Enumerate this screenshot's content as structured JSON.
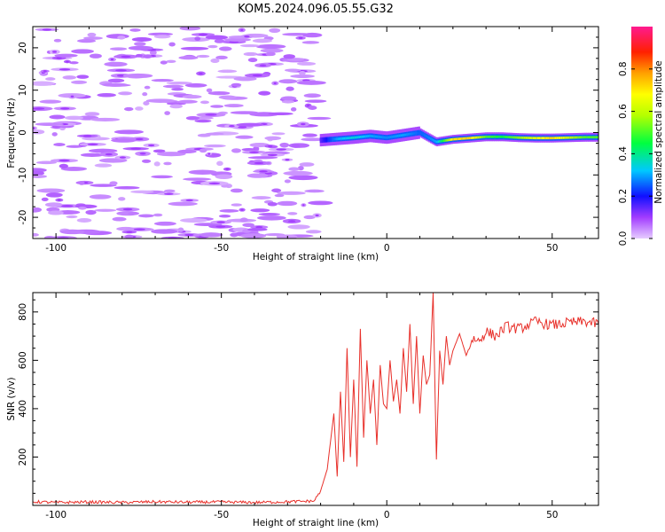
{
  "chart_data": [
    {
      "type": "heatmap",
      "title": "KOM5.2024.096.05.55.G32",
      "xlabel": "Height of straight line (km)",
      "ylabel": "Frequency (Hz)",
      "xlim": [
        -107,
        64
      ],
      "ylim": [
        -25,
        25
      ],
      "x_ticks": [
        -100,
        -50,
        0,
        50
      ],
      "y_ticks": [
        -20,
        -10,
        0,
        10,
        20
      ],
      "colorbar": {
        "label": "Normalized spectral amplitude",
        "range": [
          0,
          1
        ],
        "ticks": [
          "0.0",
          "0.2",
          "0.4",
          "0.6",
          "0.8"
        ]
      },
      "noise_region": {
        "x_range": [
          -107,
          -20
        ],
        "level": 0.15
      },
      "signal_trace": {
        "x": [
          -20,
          -15,
          -10,
          -5,
          0,
          5,
          10,
          15,
          20,
          25,
          30,
          35,
          40,
          45,
          50,
          55,
          60,
          64
        ],
        "freq": [
          -1.8,
          -1.5,
          -1.2,
          -0.8,
          -1.2,
          -0.6,
          0.0,
          -2.2,
          -1.6,
          -1.3,
          -1.0,
          -1.0,
          -1.2,
          -1.3,
          -1.3,
          -1.2,
          -1.1,
          -1.1
        ],
        "amplitude": [
          0.15,
          0.3,
          0.35,
          0.3,
          0.28,
          0.3,
          0.25,
          0.3,
          0.7,
          0.72,
          0.5,
          0.45,
          0.55,
          0.65,
          0.72,
          0.6,
          0.5,
          0.5
        ]
      }
    },
    {
      "type": "line",
      "xlabel": "Height of straight line (km)",
      "ylabel": "SNR (v/v)",
      "xlim": [
        -107,
        64
      ],
      "ylim": [
        0,
        880
      ],
      "x_ticks": [
        -100,
        -50,
        0,
        50
      ],
      "y_ticks": [
        200,
        400,
        600,
        800
      ],
      "color": "#e8302a",
      "series": [
        {
          "x": [
            -107,
            -100,
            -90,
            -80,
            -70,
            -60,
            -50,
            -40,
            -30,
            -22,
            -20,
            -18,
            -16,
            -15,
            -14,
            -13,
            -12,
            -11,
            -10,
            -9,
            -8,
            -7,
            -6,
            -5,
            -4,
            -3,
            -2,
            -1,
            0,
            1,
            2,
            3,
            4,
            5,
            6,
            7,
            8,
            9,
            10,
            11,
            12,
            13,
            14,
            15,
            16,
            17,
            18,
            19,
            20,
            22,
            24,
            26,
            28,
            30,
            33,
            36,
            40,
            45,
            50,
            55,
            60,
            64
          ],
          "y": [
            15,
            12,
            14,
            12,
            15,
            13,
            14,
            12,
            15,
            18,
            60,
            150,
            380,
            120,
            470,
            180,
            650,
            200,
            520,
            160,
            730,
            280,
            600,
            380,
            520,
            250,
            580,
            420,
            400,
            600,
            430,
            520,
            380,
            650,
            470,
            750,
            420,
            700,
            380,
            620,
            500,
            540,
            880,
            190,
            640,
            500,
            700,
            580,
            640,
            710,
            620,
            690,
            680,
            720,
            700,
            740,
            730,
            760,
            745,
            755,
            760,
            750
          ]
        }
      ]
    }
  ]
}
